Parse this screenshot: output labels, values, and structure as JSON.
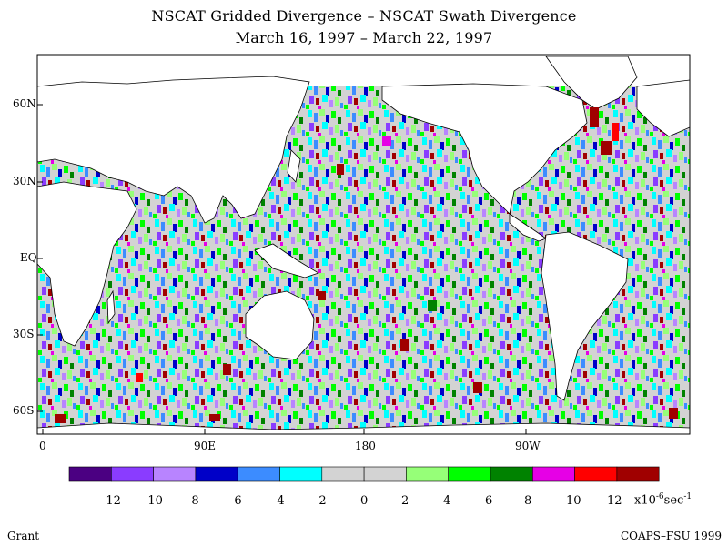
{
  "title": "NSCAT Gridded Divergence – NSCAT Swath Divergence",
  "subtitle": "March 16, 1997 – March 22, 1997",
  "lat_labels": [
    "60N",
    "30N",
    "EQ",
    "30S",
    "60S"
  ],
  "lon_labels": [
    "0",
    "90E",
    "180",
    "90W"
  ],
  "colorbar": {
    "tick_labels": [
      "-12",
      "-10",
      "-8",
      "-6",
      "-4",
      "-2",
      "0",
      "2",
      "4",
      "6",
      "8",
      "10",
      "12"
    ],
    "units_prefix": "x10",
    "units_exp1": "-6",
    "units_mid": "sec",
    "units_exp2": "-1",
    "colors": [
      "#4b0082",
      "#8a3cff",
      "#b884ff",
      "#0000c8",
      "#3c8cff",
      "#00ffff",
      "#d3d3d3",
      "#d3d3d3",
      "#96ff78",
      "#00ff00",
      "#008200",
      "#e600e6",
      "#ff0000",
      "#a00000"
    ]
  },
  "footer": {
    "left": "Grant",
    "right": "COAPS–FSU 1999"
  },
  "colors": {
    "land": "#ffffff",
    "coast": "#000000",
    "no_data": "#d3d3d3"
  }
}
